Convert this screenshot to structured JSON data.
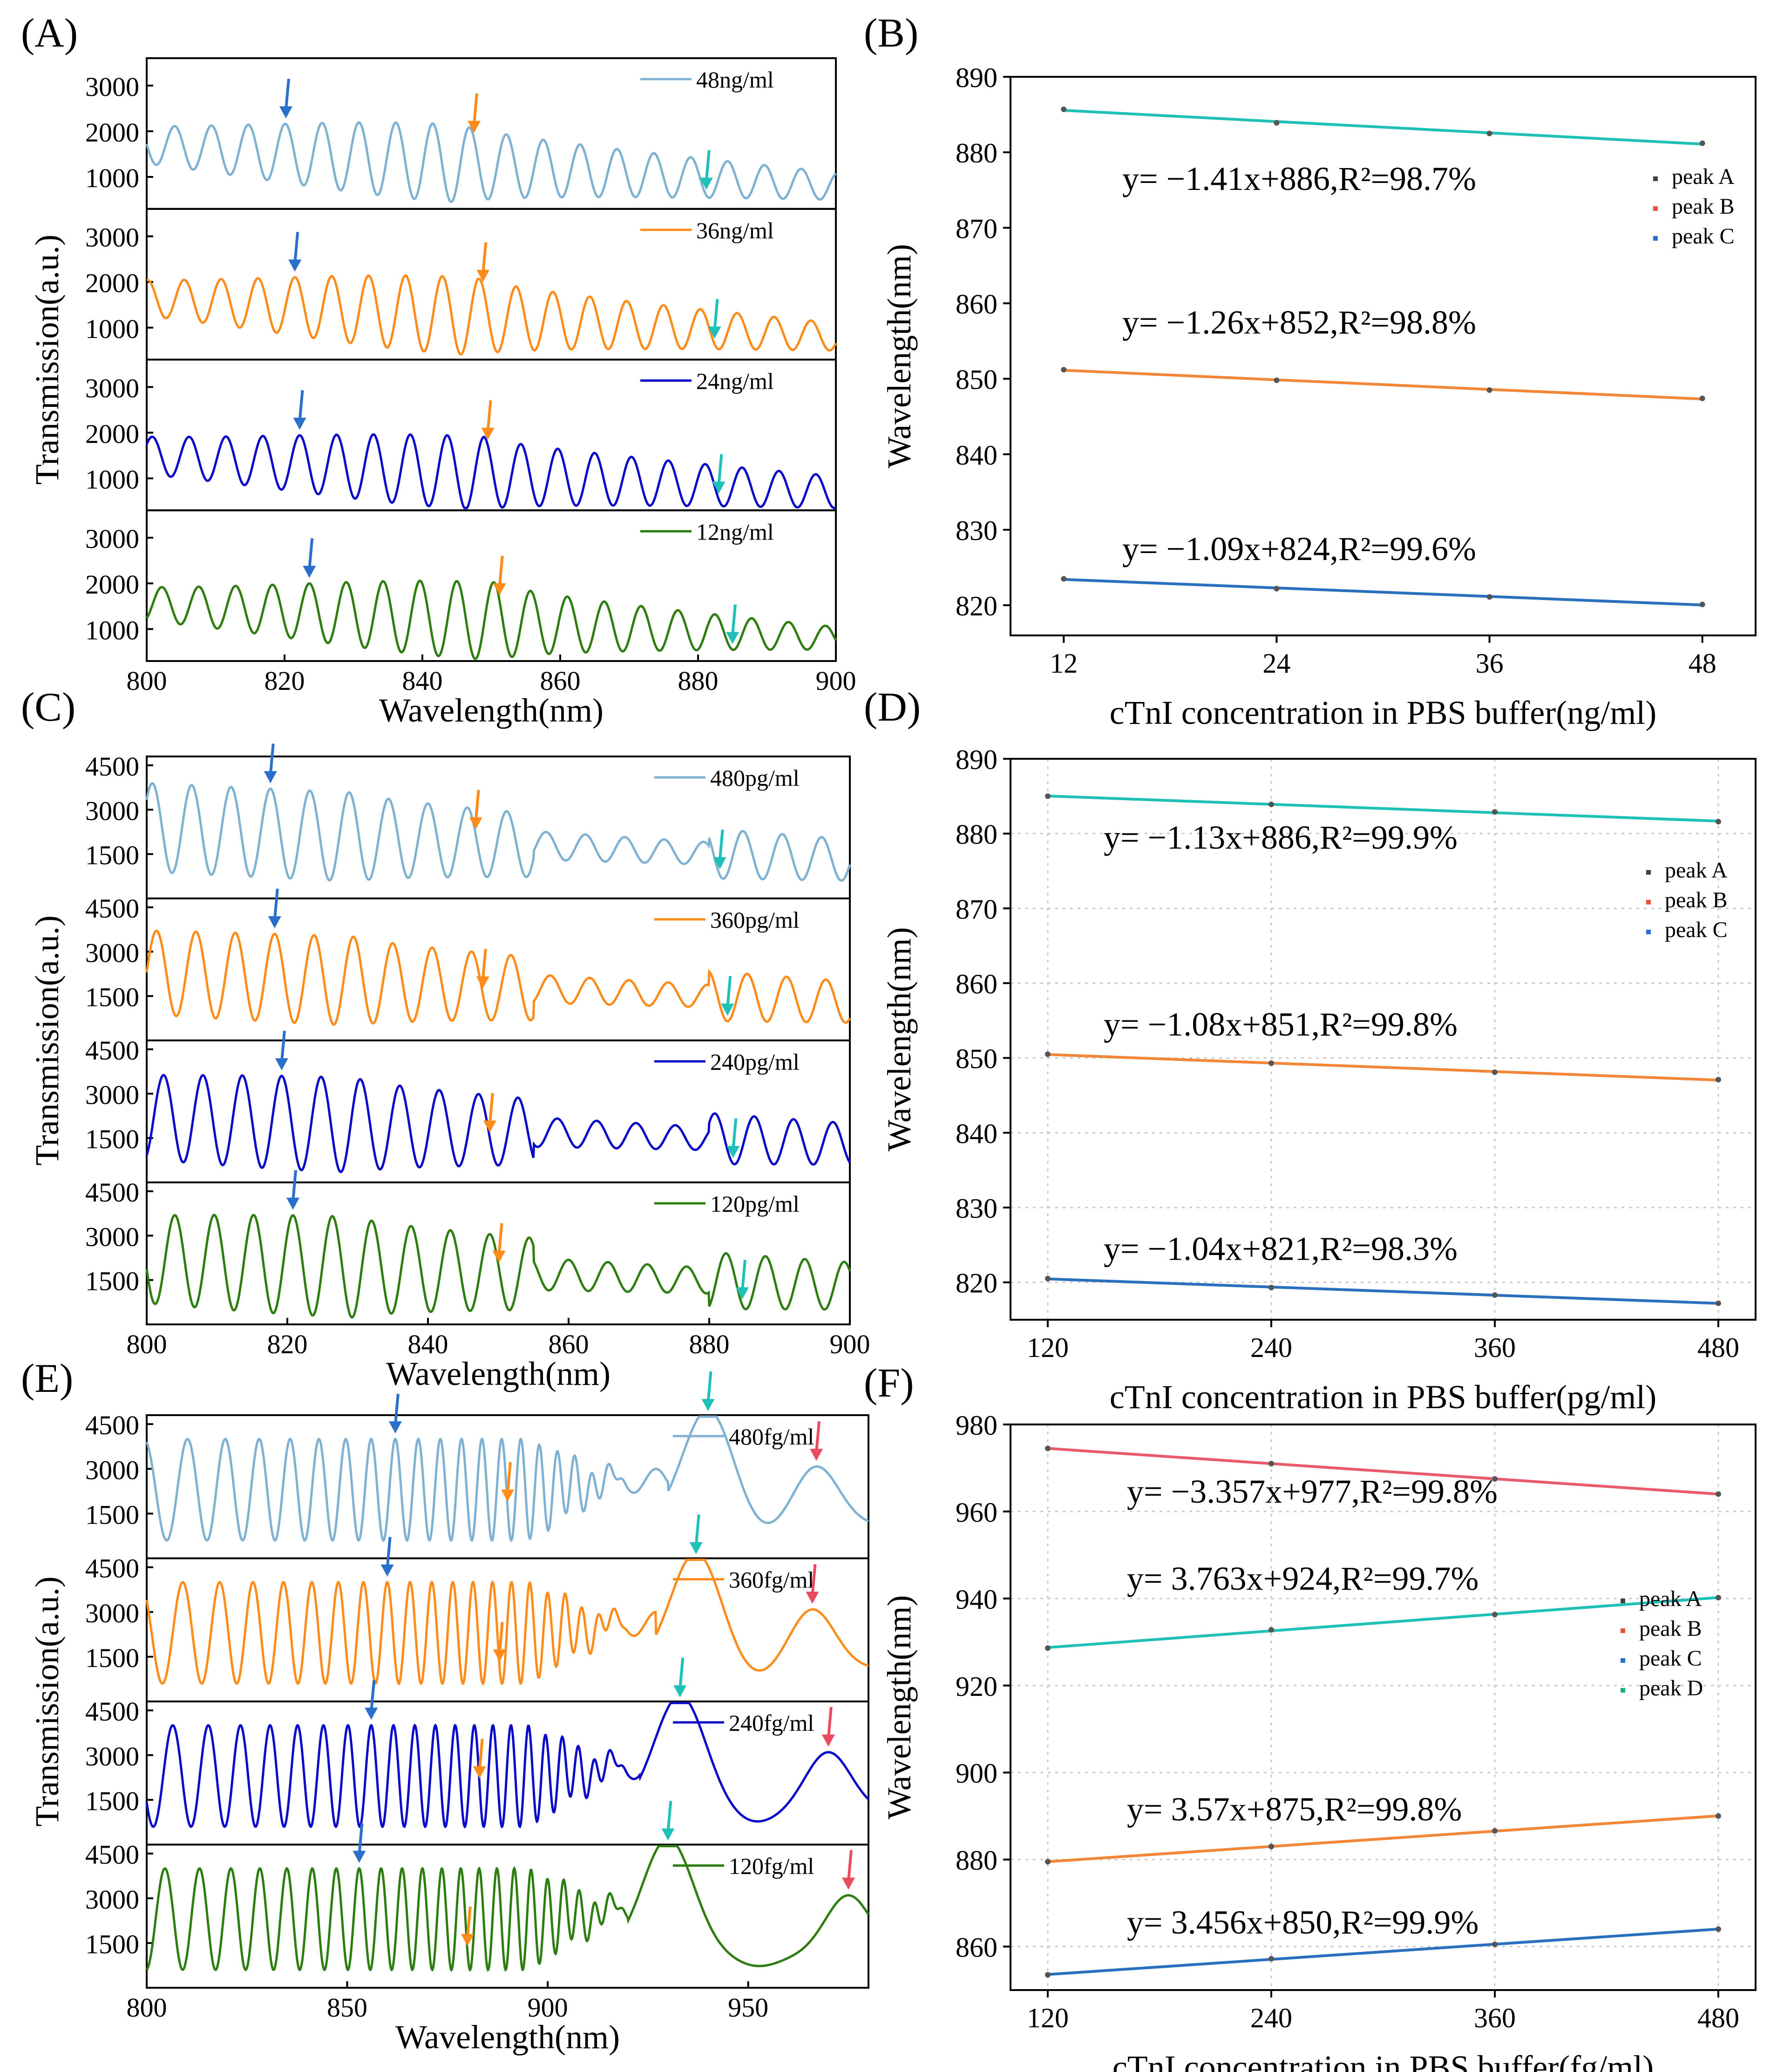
{
  "figure": {
    "panel_labels": [
      "(A)",
      "(B)",
      "(C)",
      "(D)",
      "(E)",
      "(F)"
    ]
  },
  "colors": {
    "light_blue": "#7fb2d2",
    "orange": "#ff8c1a",
    "navy": "#0a0ac8",
    "green": "#2e7d10",
    "arrow_blue": "#2a6fcc",
    "arrow_teal": "#1ec0b8",
    "arrow_red": "#ec4a5f",
    "fit_blue": "#2b6fbf",
    "fit_orange": "#f2873a",
    "fit_teal": "#1ec0b8",
    "fit_red": "#e85b6a",
    "grid": "#c8c8c8"
  },
  "chart_data": [
    {
      "panel": "(A)",
      "type": "line",
      "xlabel": "Wavelength(nm)",
      "ylabel": "Transmission(a.u.)",
      "xlim": [
        800,
        900
      ],
      "xticks": [
        800,
        820,
        840,
        860,
        880,
        900
      ],
      "yticks": [
        1000,
        2000,
        3000
      ],
      "ylim": [
        300,
        3600
      ],
      "series": [
        {
          "name": "48ng/ml",
          "color": "#7fb2d2",
          "period": 5.35,
          "phase": 820.1,
          "mid_start": 1700,
          "mid_end": 800,
          "amp_start": 250,
          "amp_peak": 850,
          "amp_end": 300,
          "peak_center": 846,
          "arrows": [
            {
              "x": 820.2,
              "color": "#2a6fcc"
            },
            {
              "x": 847.5,
              "color": "#ff8c1a"
            },
            {
              "x": 881.2,
              "color": "#1ec0b8"
            }
          ]
        },
        {
          "name": "36ng/ml",
          "color": "#ff8c1a",
          "period": 5.35,
          "phase": 821.5,
          "mid_start": 1650,
          "mid_end": 800,
          "amp_start": 250,
          "amp_peak": 850,
          "amp_end": 300,
          "peak_center": 848,
          "arrows": [
            {
              "x": 821.5,
              "color": "#2a6fcc"
            },
            {
              "x": 848.8,
              "color": "#ff8c1a"
            },
            {
              "x": 882.4,
              "color": "#1ec0b8"
            }
          ]
        },
        {
          "name": "24ng/ml",
          "color": "#0a0ac8",
          "period": 5.35,
          "phase": 822.2,
          "mid_start": 1500,
          "mid_end": 700,
          "amp_start": 300,
          "amp_peak": 800,
          "amp_end": 350,
          "peak_center": 849,
          "arrows": [
            {
              "x": 822.2,
              "color": "#2a6fcc"
            },
            {
              "x": 849.5,
              "color": "#ff8c1a"
            },
            {
              "x": 883.0,
              "color": "#1ec0b8"
            }
          ]
        },
        {
          "name": "12ng/ml",
          "color": "#2e7d10",
          "period": 5.35,
          "phase": 823.6,
          "mid_start": 1550,
          "mid_end": 800,
          "amp_start": 250,
          "amp_peak": 850,
          "amp_end": 250,
          "peak_center": 851,
          "arrows": [
            {
              "x": 823.6,
              "color": "#2a6fcc"
            },
            {
              "x": 851.2,
              "color": "#ff8c1a"
            },
            {
              "x": 885.0,
              "color": "#1ec0b8"
            }
          ]
        }
      ]
    },
    {
      "panel": "(B)",
      "type": "scatter",
      "xlabel": "cTnI concentration in PBS buffer(ng/ml)",
      "ylabel": "Wavelength(nm)",
      "xlim": [
        9,
        51
      ],
      "ylim": [
        816,
        890
      ],
      "xticks": [
        12,
        24,
        36,
        48
      ],
      "yticks": [
        820,
        830,
        840,
        850,
        860,
        870,
        880,
        890
      ],
      "grid": false,
      "legend": [
        "peak A",
        "peak B",
        "peak C"
      ],
      "legend_position": "top-right",
      "series": [
        {
          "name": "peak A",
          "x": [
            12,
            24,
            36,
            48
          ],
          "y": [
            823.5,
            822.2,
            821.1,
            820.1
          ],
          "color": "#2b6fbf"
        },
        {
          "name": "peak B",
          "x": [
            12,
            24,
            36,
            48
          ],
          "y": [
            851.2,
            849.8,
            848.5,
            847.4
          ],
          "color": "#f2873a"
        },
        {
          "name": "peak C",
          "x": [
            12,
            24,
            36,
            48
          ],
          "y": [
            885.7,
            883.9,
            882.5,
            881.2
          ],
          "color": "#1ec0b8"
        }
      ],
      "annotations": [
        {
          "text": "y= −1.41x+886,R²=98.7%",
          "near_y": 875
        },
        {
          "text": "y= −1.26x+852,R²=98.8%",
          "near_y": 856
        },
        {
          "text": "y= −1.09x+824,R²=99.6%",
          "near_y": 826
        }
      ]
    },
    {
      "panel": "(C)",
      "type": "line",
      "xlabel": "Wavelength(nm)",
      "ylabel": "Transmission(a.u.)",
      "xlim": [
        800,
        900
      ],
      "xticks": [
        800,
        820,
        840,
        860,
        880,
        900
      ],
      "yticks": [
        1500,
        3000,
        4500
      ],
      "ylim": [
        0,
        4800
      ],
      "series": [
        {
          "name": "480pg/ml",
          "color": "#7fb2d2",
          "period": 5.6,
          "phase": 817.6,
          "mid_start": 2400,
          "mid_end": 1300,
          "amp_start": 1500,
          "amp_peak": 1500,
          "amp_end": 700,
          "peak_center": 830,
          "arrows": [
            {
              "x": 817.6,
              "color": "#2a6fcc"
            },
            {
              "x": 846.8,
              "color": "#ff8c1a"
            },
            {
              "x": 881.5,
              "color": "#1ec0b8"
            }
          ]
        },
        {
          "name": "360pg/ml",
          "color": "#ff8c1a",
          "period": 5.6,
          "phase": 818.2,
          "mid_start": 2300,
          "mid_end": 1300,
          "amp_start": 1300,
          "amp_peak": 1500,
          "amp_end": 700,
          "peak_center": 830,
          "arrows": [
            {
              "x": 818.2,
              "color": "#2a6fcc"
            },
            {
              "x": 847.8,
              "color": "#ff8c1a"
            },
            {
              "x": 882.6,
              "color": "#1ec0b8"
            }
          ]
        },
        {
          "name": "240pg/ml",
          "color": "#0a0ac8",
          "period": 5.6,
          "phase": 819.2,
          "mid_start": 2200,
          "mid_end": 1300,
          "amp_start": 1200,
          "amp_peak": 1600,
          "amp_end": 700,
          "peak_center": 830,
          "arrows": [
            {
              "x": 819.2,
              "color": "#2a6fcc"
            },
            {
              "x": 848.8,
              "color": "#ff8c1a"
            },
            {
              "x": 883.4,
              "color": "#1ec0b8"
            }
          ]
        },
        {
          "name": "120pg/ml",
          "color": "#2e7d10",
          "period": 5.6,
          "phase": 820.8,
          "mid_start": 2200,
          "mid_end": 1300,
          "amp_start": 1200,
          "amp_peak": 1700,
          "amp_end": 800,
          "peak_center": 830,
          "arrows": [
            {
              "x": 820.8,
              "color": "#2a6fcc"
            },
            {
              "x": 850.1,
              "color": "#ff8c1a"
            },
            {
              "x": 884.7,
              "color": "#1ec0b8"
            }
          ]
        }
      ]
    },
    {
      "panel": "(D)",
      "type": "scatter",
      "xlabel": "cTnI concentration in PBS buffer(pg/ml)",
      "ylabel": "Wavelength(nm)",
      "xlim": [
        100,
        500
      ],
      "ylim": [
        815,
        890
      ],
      "xticks": [
        120,
        240,
        360,
        480
      ],
      "yticks": [
        820,
        830,
        840,
        850,
        860,
        870,
        880,
        890
      ],
      "grid": true,
      "legend": [
        "peak A",
        "peak B",
        "peak C"
      ],
      "legend_position": "top-right",
      "series": [
        {
          "name": "peak A",
          "x": [
            120,
            240,
            360,
            480
          ],
          "y": [
            820.5,
            819.3,
            818.3,
            817.2
          ],
          "color": "#2b6fbf"
        },
        {
          "name": "peak B",
          "x": [
            120,
            240,
            360,
            480
          ],
          "y": [
            850.5,
            849.3,
            848.1,
            847.1
          ],
          "color": "#f2873a"
        },
        {
          "name": "peak C",
          "x": [
            120,
            240,
            360,
            480
          ],
          "y": [
            885.0,
            883.9,
            882.9,
            881.6
          ],
          "color": "#1ec0b8"
        }
      ],
      "annotations": [
        {
          "text": "y= −1.13x+886,R²=99.9%",
          "near_y": 878
        },
        {
          "text": "y= −1.08x+851,R²=99.8%",
          "near_y": 853
        },
        {
          "text": "y= −1.04x+821,R²=98.3%",
          "near_y": 823
        }
      ]
    },
    {
      "panel": "(E)",
      "type": "line",
      "xlabel": "Wavelength(nm)",
      "ylabel": "Transmission(a.u.)",
      "xlim": [
        800,
        980
      ],
      "xticks": [
        800,
        850,
        900,
        950
      ],
      "yticks": [
        1500,
        3000,
        4500
      ],
      "ylim": [
        0,
        4800
      ],
      "series": [
        {
          "name": "480fg/ml",
          "color": "#7fb2d2",
          "period": 6.5,
          "phase": 862,
          "base_mid": 2300,
          "base_amp": 1700,
          "wide1": 940,
          "wide2": 967,
          "arrows": [
            {
              "x": 862,
              "color": "#2a6fcc"
            },
            {
              "x": 890,
              "color": "#ff8c1a"
            },
            {
              "x": 940,
              "color": "#1ec0b8"
            },
            {
              "x": 967,
              "color": "#ec4a5f"
            }
          ]
        },
        {
          "name": "360fg/ml",
          "color": "#ff8c1a",
          "period": 6.5,
          "phase": 860,
          "base_mid": 2300,
          "base_amp": 1700,
          "wide1": 937,
          "wide2": 966,
          "arrows": [
            {
              "x": 860,
              "color": "#2a6fcc"
            },
            {
              "x": 888,
              "color": "#ff8c1a"
            },
            {
              "x": 937,
              "color": "#1ec0b8"
            },
            {
              "x": 966,
              "color": "#ec4a5f"
            }
          ]
        },
        {
          "name": "240fg/ml",
          "color": "#0a0ac8",
          "period": 6.5,
          "phase": 856,
          "base_mid": 2300,
          "base_amp": 1700,
          "wide1": 933,
          "wide2": 970,
          "arrows": [
            {
              "x": 856,
              "color": "#2a6fcc"
            },
            {
              "x": 883,
              "color": "#ff8c1a"
            },
            {
              "x": 933,
              "color": "#1ec0b8"
            },
            {
              "x": 970,
              "color": "#ec4a5f"
            }
          ]
        },
        {
          "name": "120fg/ml",
          "color": "#2e7d10",
          "period": 6.5,
          "phase": 853,
          "base_mid": 2300,
          "base_amp": 1700,
          "wide1": 930,
          "wide2": 975,
          "arrows": [
            {
              "x": 853,
              "color": "#2a6fcc"
            },
            {
              "x": 880,
              "color": "#ff8c1a"
            },
            {
              "x": 930,
              "color": "#1ec0b8"
            },
            {
              "x": 975,
              "color": "#ec4a5f"
            }
          ]
        }
      ]
    },
    {
      "panel": "(F)",
      "type": "scatter",
      "xlabel": "cTnI concentration in PBS buffer(fg/ml)",
      "ylabel": "Wavelength(nm)",
      "xlim": [
        100,
        500
      ],
      "ylim": [
        850,
        980
      ],
      "xticks": [
        120,
        240,
        360,
        480
      ],
      "yticks": [
        860,
        880,
        900,
        920,
        940,
        960,
        980
      ],
      "grid": true,
      "legend": [
        "peak A",
        "peak B",
        "peak C",
        "peak D"
      ],
      "legend_position": "right",
      "series": [
        {
          "name": "peak A",
          "x": [
            120,
            240,
            360,
            480
          ],
          "y": [
            853.5,
            857.2,
            860.5,
            864.0
          ],
          "color": "#2b6fbf"
        },
        {
          "name": "peak B",
          "x": [
            120,
            240,
            360,
            480
          ],
          "y": [
            879.5,
            883.0,
            886.6,
            890.0
          ],
          "color": "#f2873a"
        },
        {
          "name": "peak C",
          "x": [
            120,
            240,
            360,
            480
          ],
          "y": [
            928.6,
            932.8,
            936.3,
            940.2
          ],
          "color": "#1ec0b8"
        },
        {
          "name": "peak D",
          "x": [
            120,
            240,
            360,
            480
          ],
          "y": [
            974.5,
            971.0,
            967.5,
            964.0
          ],
          "color": "#e85b6a"
        }
      ],
      "annotations": [
        {
          "text": "y= −3.357x+977,R²=99.8%",
          "near_y": 962
        },
        {
          "text": "y= 3.763x+924,R²=99.7%",
          "near_y": 942
        },
        {
          "text": "y= 3.57x+875,R²=99.8%",
          "near_y": 889
        },
        {
          "text": "y= 3.456x+850,R²=99.9%",
          "near_y": 863
        }
      ]
    }
  ]
}
